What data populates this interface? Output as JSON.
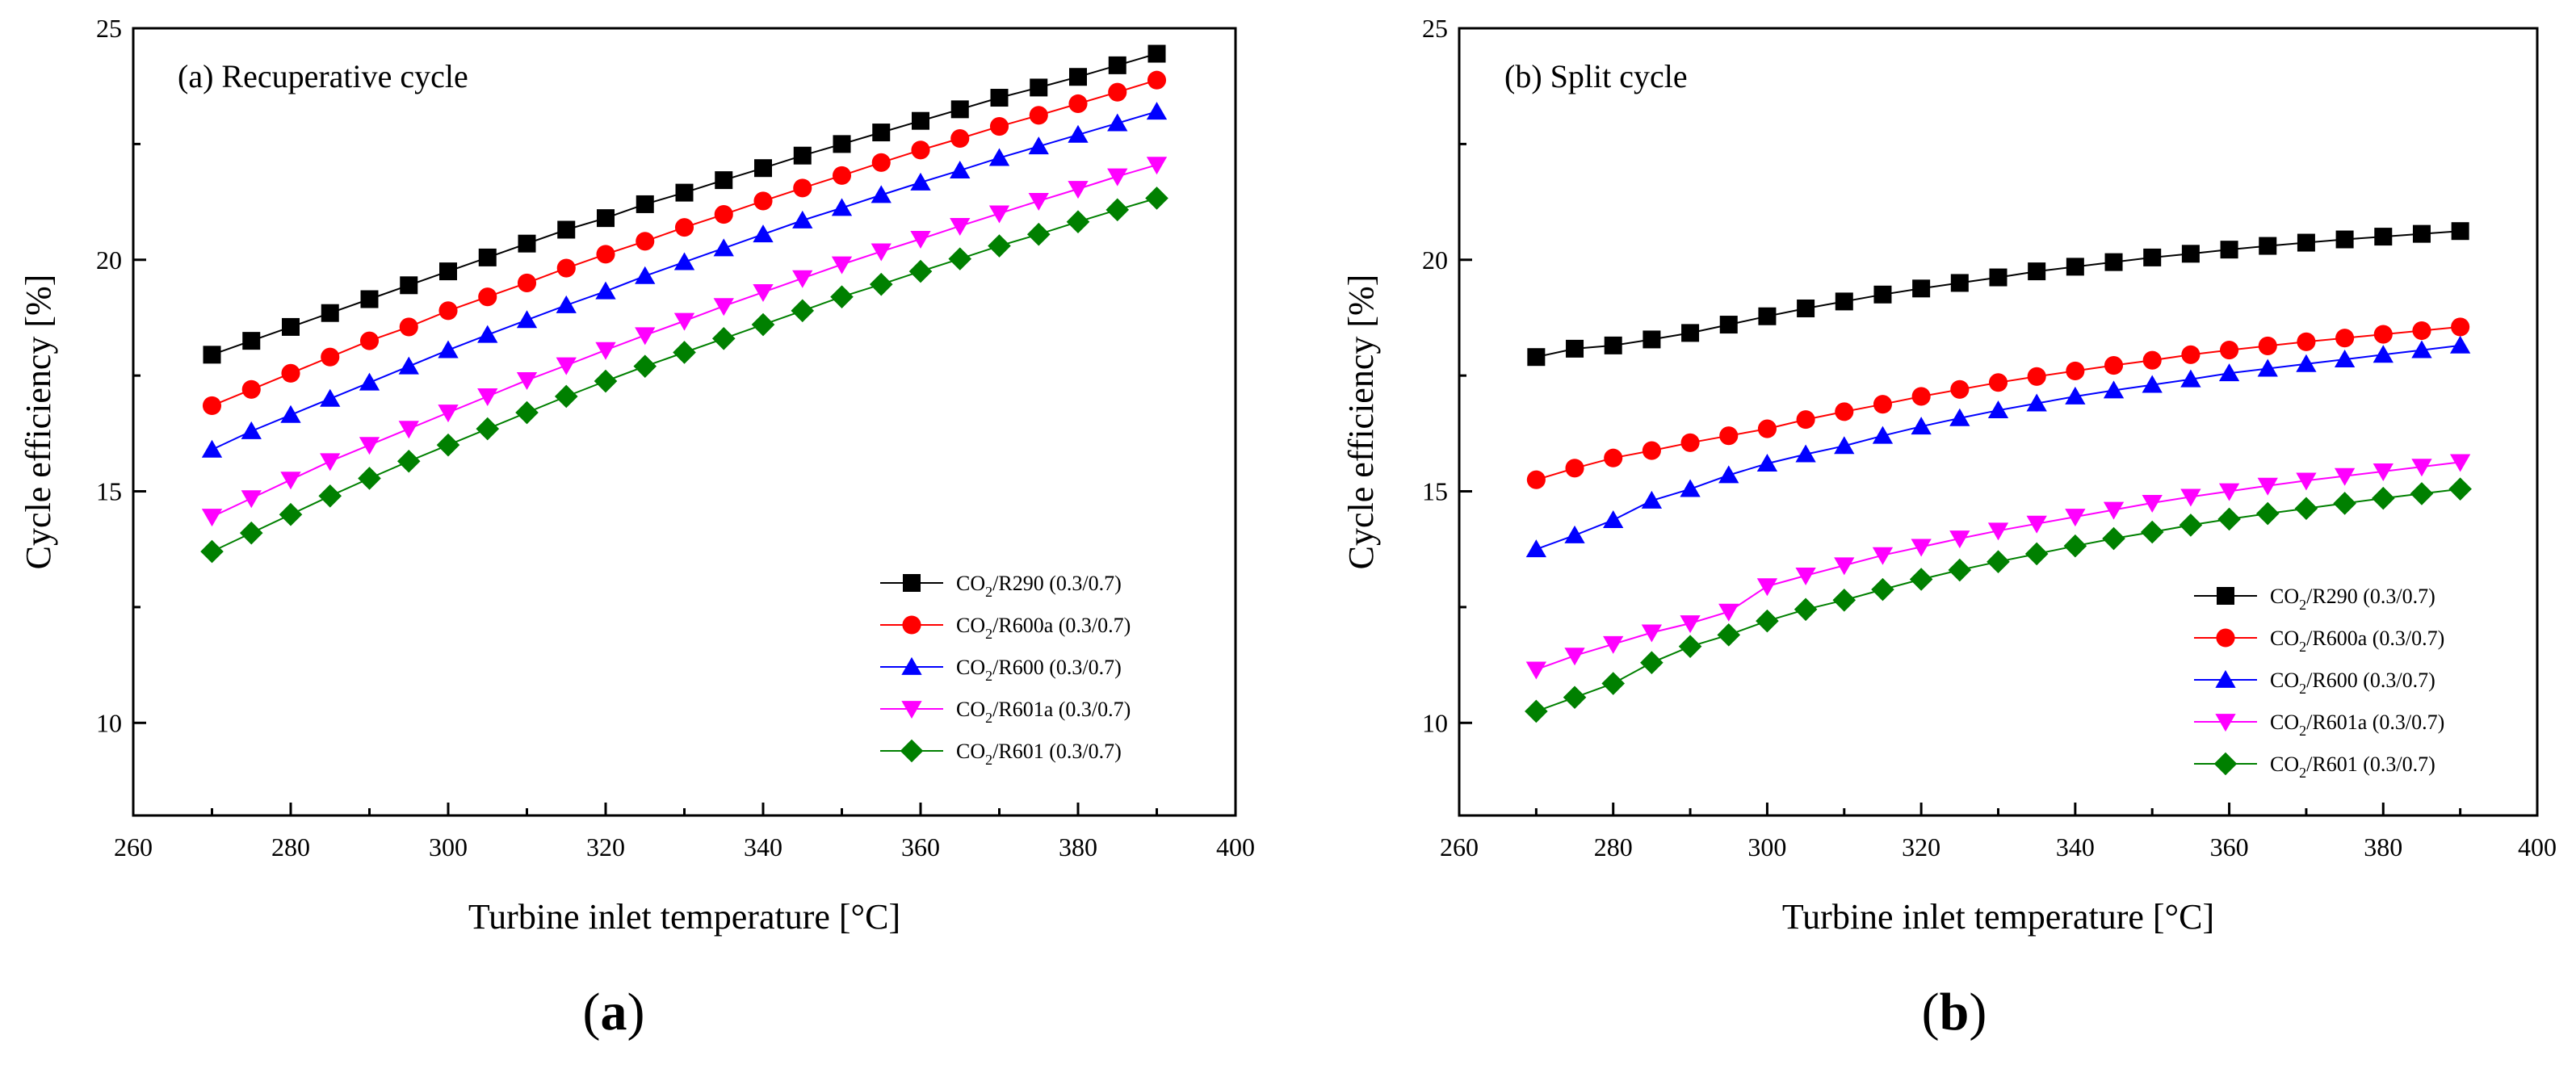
{
  "chart_data": [
    {
      "type": "line",
      "panel_label": "(a)",
      "inset_label": "(a) Recuperative cycle",
      "xlabel": "Turbine inlet temperature [°C]",
      "ylabel": "Cycle efficiency [%]",
      "xlim": [
        260,
        400
      ],
      "ylim": [
        8,
        25
      ],
      "xticks": [
        260,
        280,
        300,
        320,
        340,
        360,
        380,
        400
      ],
      "yticks": [
        10,
        15,
        20,
        25
      ],
      "grid": false,
      "legend_position": "lower-right",
      "x": [
        270,
        275,
        280,
        285,
        290,
        295,
        300,
        305,
        310,
        315,
        320,
        325,
        330,
        335,
        340,
        345,
        350,
        355,
        360,
        365,
        370,
        375,
        380,
        385,
        390
      ],
      "series": [
        {
          "name": "CO2/R290 (0.3/0.7)",
          "main": "CO",
          "sub": "2",
          "rest": "/R290 (0.3/0.7)",
          "color": "#000000",
          "marker": "square",
          "values": [
            17.95,
            18.25,
            18.55,
            18.85,
            19.15,
            19.45,
            19.75,
            20.05,
            20.35,
            20.65,
            20.9,
            21.2,
            21.45,
            21.72,
            21.98,
            22.25,
            22.5,
            22.75,
            23.0,
            23.25,
            23.5,
            23.72,
            23.95,
            24.2,
            24.45
          ]
        },
        {
          "name": "CO2/R600a (0.3/0.7)",
          "main": "CO",
          "sub": "2",
          "rest": "/R600a (0.3/0.7)",
          "color": "#ff0000",
          "marker": "circle",
          "values": [
            16.85,
            17.2,
            17.55,
            17.9,
            18.25,
            18.55,
            18.9,
            19.2,
            19.5,
            19.82,
            20.12,
            20.4,
            20.7,
            20.98,
            21.27,
            21.55,
            21.82,
            22.1,
            22.37,
            22.62,
            22.88,
            23.12,
            23.37,
            23.62,
            23.88
          ]
        },
        {
          "name": "CO2/R600 (0.3/0.7)",
          "main": "CO",
          "sub": "2",
          "rest": "/R600 (0.3/0.7)",
          "color": "#0000ff",
          "marker": "triangle-up",
          "values": [
            15.9,
            16.3,
            16.65,
            17.0,
            17.35,
            17.7,
            18.05,
            18.38,
            18.7,
            19.02,
            19.32,
            19.65,
            19.95,
            20.25,
            20.55,
            20.85,
            21.12,
            21.4,
            21.67,
            21.93,
            22.2,
            22.45,
            22.7,
            22.95,
            23.2
          ]
        },
        {
          "name": "CO2/R601a (0.3/0.7)",
          "main": "CO",
          "sub": "2",
          "rest": "/R601a (0.3/0.7)",
          "color": "#ff00ff",
          "marker": "triangle-down",
          "values": [
            14.45,
            14.85,
            15.25,
            15.65,
            16.0,
            16.35,
            16.7,
            17.05,
            17.4,
            17.72,
            18.05,
            18.37,
            18.68,
            19.0,
            19.3,
            19.6,
            19.9,
            20.18,
            20.45,
            20.73,
            21.0,
            21.27,
            21.53,
            21.8,
            22.05
          ]
        },
        {
          "name": "CO2/R601 (0.3/0.7)",
          "main": "CO",
          "sub": "2",
          "rest": "/R601 (0.3/0.7)",
          "color": "#008000",
          "marker": "diamond",
          "values": [
            13.7,
            14.1,
            14.5,
            14.9,
            15.28,
            15.65,
            16.0,
            16.35,
            16.7,
            17.05,
            17.38,
            17.7,
            18.0,
            18.3,
            18.6,
            18.9,
            19.2,
            19.47,
            19.75,
            20.02,
            20.3,
            20.55,
            20.82,
            21.08,
            21.33
          ]
        }
      ]
    },
    {
      "type": "line",
      "panel_label": "(b)",
      "inset_label": "(b) Split cycle",
      "xlabel": "Turbine inlet temperature [°C]",
      "ylabel": "Cycle efficiency [%]",
      "xlim": [
        260,
        400
      ],
      "ylim": [
        8,
        25
      ],
      "xticks": [
        260,
        280,
        300,
        320,
        340,
        360,
        380,
        400
      ],
      "yticks": [
        10,
        15,
        20,
        25
      ],
      "grid": false,
      "legend_position": "lower-right",
      "x": [
        270,
        275,
        280,
        285,
        290,
        295,
        300,
        305,
        310,
        315,
        320,
        325,
        330,
        335,
        340,
        345,
        350,
        355,
        360,
        365,
        370,
        375,
        380,
        385,
        390
      ],
      "series": [
        {
          "name": "CO2/R290 (0.3/0.7)",
          "main": "CO",
          "sub": "2",
          "rest": "/R290 (0.3/0.7)",
          "color": "#000000",
          "marker": "square",
          "values": [
            17.9,
            18.08,
            18.15,
            18.28,
            18.42,
            18.6,
            18.78,
            18.95,
            19.1,
            19.25,
            19.38,
            19.5,
            19.62,
            19.75,
            19.85,
            19.95,
            20.05,
            20.13,
            20.22,
            20.3,
            20.37,
            20.44,
            20.5,
            20.56,
            20.62
          ]
        },
        {
          "name": "CO2/R600a (0.3/0.7)",
          "main": "CO",
          "sub": "2",
          "rest": "/R600a (0.3/0.7)",
          "color": "#ff0000",
          "marker": "circle",
          "values": [
            15.25,
            15.5,
            15.72,
            15.88,
            16.05,
            16.2,
            16.35,
            16.55,
            16.72,
            16.88,
            17.05,
            17.2,
            17.35,
            17.48,
            17.6,
            17.72,
            17.83,
            17.95,
            18.05,
            18.14,
            18.23,
            18.31,
            18.39,
            18.47,
            18.55
          ]
        },
        {
          "name": "CO2/R600 (0.3/0.7)",
          "main": "CO",
          "sub": "2",
          "rest": "/R600 (0.3/0.7)",
          "color": "#0000ff",
          "marker": "triangle-up",
          "values": [
            13.75,
            14.05,
            14.38,
            14.8,
            15.05,
            15.35,
            15.6,
            15.8,
            15.98,
            16.2,
            16.4,
            16.58,
            16.75,
            16.9,
            17.05,
            17.18,
            17.3,
            17.42,
            17.55,
            17.65,
            17.75,
            17.85,
            17.95,
            18.05,
            18.15
          ]
        },
        {
          "name": "CO2/R601a (0.3/0.7)",
          "main": "CO",
          "sub": "2",
          "rest": "/R601a (0.3/0.7)",
          "color": "#ff00ff",
          "marker": "triangle-down",
          "values": [
            11.15,
            11.45,
            11.7,
            11.95,
            12.15,
            12.4,
            12.95,
            13.18,
            13.4,
            13.62,
            13.8,
            13.98,
            14.15,
            14.3,
            14.45,
            14.6,
            14.75,
            14.88,
            15.0,
            15.12,
            15.23,
            15.33,
            15.43,
            15.53,
            15.63
          ]
        },
        {
          "name": "CO2/R601 (0.3/0.7)",
          "main": "CO",
          "sub": "2",
          "rest": "/R601 (0.3/0.7)",
          "color": "#008000",
          "marker": "diamond",
          "values": [
            10.25,
            10.55,
            10.85,
            11.3,
            11.65,
            11.9,
            12.2,
            12.45,
            12.65,
            12.88,
            13.1,
            13.3,
            13.48,
            13.65,
            13.82,
            13.98,
            14.12,
            14.27,
            14.4,
            14.52,
            14.63,
            14.74,
            14.85,
            14.95,
            15.05
          ]
        }
      ]
    }
  ]
}
